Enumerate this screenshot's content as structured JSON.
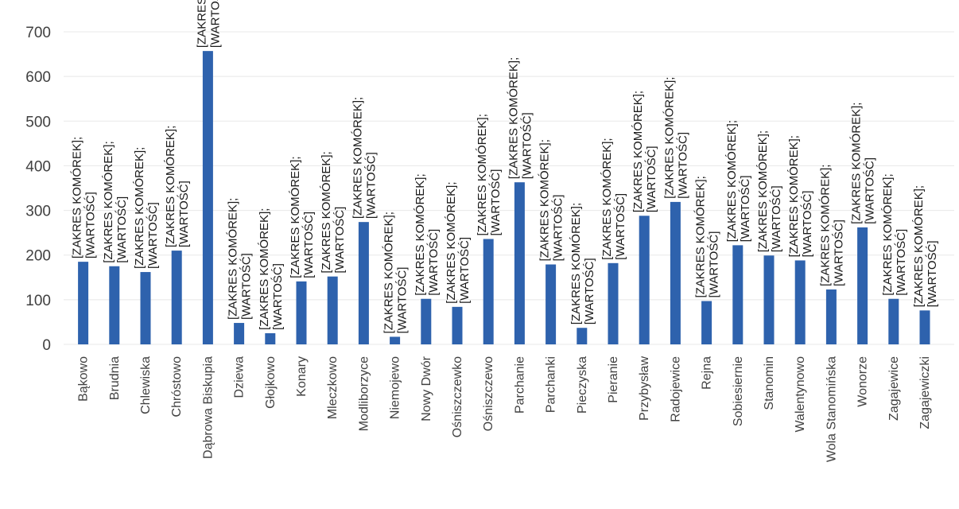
{
  "chart_data": {
    "type": "bar",
    "categories": [
      "Bąkowo",
      "Brudnia",
      "Chlewiska",
      "Chróstowo",
      "Dąbrowa Biskupia",
      "Dziewa",
      "Głojkowo",
      "Konary",
      "Mleczkowo",
      "Modliborzyce",
      "Niemojewo",
      "Nowy Dwór",
      "Ośniszczewko",
      "Ośniszczewo",
      "Parchanie",
      "Parchanki",
      "Pieczyska",
      "Pieranie",
      "Przybysław",
      "Radojewice",
      "Rejna",
      "Sobiesiernie",
      "Stanomin",
      "Walentynowo",
      "Wola Stanomińska",
      "Wonorze",
      "Zagajewice",
      "Zagajewiczki"
    ],
    "values": [
      185,
      175,
      162,
      210,
      657,
      48,
      25,
      141,
      152,
      274,
      17,
      102,
      84,
      236,
      363,
      179,
      37,
      182,
      288,
      319,
      97,
      222,
      199,
      188,
      123,
      262,
      102,
      76
    ],
    "data_label_line1": "[ZAKRES KOMÓREK];",
    "data_label_line2": "[WARTOŚĆ]",
    "ylim": [
      0,
      700
    ],
    "yticks": [
      "0",
      "100",
      "200",
      "300",
      "400",
      "500",
      "600",
      "700"
    ],
    "grid": true,
    "bar_color": "#2e62ad"
  }
}
